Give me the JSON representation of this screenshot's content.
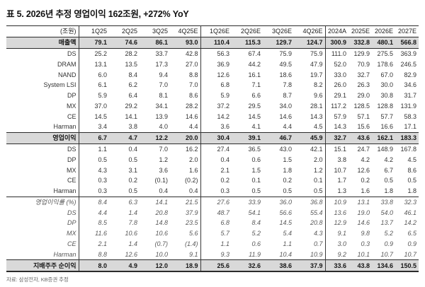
{
  "title": "표 5. 2026년 추정 영업이익 162조원, +272% YoY",
  "source": "자료: 삼성전자, KB증권 추정",
  "colors": {
    "band_bg": "#d9d9d9",
    "negative_text": "#e0443a",
    "body_text": "#333333",
    "italic_muted_text": "#595959",
    "border": "#2b2b2b"
  },
  "table": {
    "unit": "(조원)",
    "columns": [
      "1Q25",
      "2Q25",
      "3Q25",
      "4Q25E",
      "1Q26E",
      "2Q26E",
      "3Q26E",
      "4Q26E",
      "2024A",
      "2025E",
      "2026E",
      "2027E"
    ],
    "group_separator_after_columns": [
      "4Q25E",
      "4Q26E"
    ],
    "rows": [
      {
        "label": "매출액",
        "style": "band",
        "values": [
          "79.1",
          "74.6",
          "86.1",
          "93.0",
          "110.4",
          "115.3",
          "129.7",
          "124.7",
          "300.9",
          "332.8",
          "480.1",
          "566.8"
        ]
      },
      {
        "label": "DS",
        "style": "plain",
        "values": [
          "25.2",
          "28.2",
          "33.7",
          "42.8",
          "56.3",
          "67.4",
          "75.9",
          "75.9",
          "111.0",
          "129.9",
          "275.5",
          "363.9"
        ]
      },
      {
        "label": "DRAM",
        "style": "sub",
        "values": [
          "13.1",
          "13.5",
          "17.3",
          "27.0",
          "36.9",
          "44.2",
          "49.5",
          "47.9",
          "52.0",
          "70.9",
          "178.6",
          "246.5"
        ]
      },
      {
        "label": "NAND",
        "style": "sub",
        "values": [
          "6.0",
          "8.4",
          "9.4",
          "8.8",
          "12.6",
          "16.1",
          "18.6",
          "19.7",
          "33.0",
          "32.7",
          "67.0",
          "82.9"
        ]
      },
      {
        "label": "System LSI",
        "style": "sub",
        "values": [
          "6.1",
          "6.2",
          "7.0",
          "7.0",
          "6.8",
          "7.1",
          "7.8",
          "8.2",
          "26.0",
          "26.3",
          "30.0",
          "34.6"
        ]
      },
      {
        "label": "DP",
        "style": "plain",
        "values": [
          "5.9",
          "6.4",
          "8.1",
          "8.6",
          "5.9",
          "6.6",
          "8.7",
          "9.6",
          "29.1",
          "29.0",
          "30.8",
          "31.7"
        ]
      },
      {
        "label": "MX",
        "style": "plain",
        "values": [
          "37.0",
          "29.2",
          "34.1",
          "28.2",
          "37.2",
          "29.5",
          "34.0",
          "28.1",
          "117.2",
          "128.5",
          "128.8",
          "131.9"
        ]
      },
      {
        "label": "CE",
        "style": "plain",
        "values": [
          "14.5",
          "14.1",
          "13.9",
          "14.6",
          "14.2",
          "14.5",
          "14.6",
          "14.3",
          "57.9",
          "57.1",
          "57.7",
          "58.3"
        ]
      },
      {
        "label": "Harman",
        "style": "plain",
        "values": [
          "3.4",
          "3.8",
          "4.0",
          "4.4",
          "3.6",
          "4.1",
          "4.4",
          "4.5",
          "14.3",
          "15.6",
          "16.6",
          "17.1"
        ]
      },
      {
        "label": "영업이익",
        "style": "band",
        "values": [
          "6.7",
          "4.7",
          "12.2",
          "20.0",
          "30.4",
          "39.1",
          "46.7",
          "45.9",
          "32.7",
          "43.6",
          "162.1",
          "183.3"
        ]
      },
      {
        "label": "DS",
        "style": "plain",
        "values": [
          "1.1",
          "0.4",
          "7.0",
          "16.2",
          "27.4",
          "36.5",
          "43.0",
          "42.1",
          "15.1",
          "24.7",
          "148.9",
          "167.8"
        ]
      },
      {
        "label": "DP",
        "style": "plain",
        "values": [
          "0.5",
          "0.5",
          "1.2",
          "2.0",
          "0.4",
          "0.6",
          "1.5",
          "2.0",
          "3.8",
          "4.2",
          "4.2",
          "4.5"
        ]
      },
      {
        "label": "MX",
        "style": "plain",
        "values": [
          "4.3",
          "3.1",
          "3.6",
          "1.6",
          "2.1",
          "1.5",
          "1.8",
          "1.2",
          "10.7",
          "12.6",
          "6.7",
          "8.6"
        ]
      },
      {
        "label": "CE",
        "style": "plain",
        "values": [
          "0.3",
          "0.2",
          "(0.1)",
          "(0.2)",
          "0.2",
          "0.1",
          "0.2",
          "0.1",
          "1.7",
          "0.2",
          "0.5",
          "0.5"
        ]
      },
      {
        "label": "Harman",
        "style": "plain",
        "values": [
          "0.3",
          "0.5",
          "0.4",
          "0.4",
          "0.3",
          "0.5",
          "0.5",
          "0.5",
          "1.3",
          "1.6",
          "1.8",
          "1.8"
        ]
      },
      {
        "label": "영업이익률 (%)",
        "style": "section",
        "values": [
          "8.4",
          "6.3",
          "14.1",
          "21.5",
          "27.6",
          "33.9",
          "36.0",
          "36.8",
          "10.9",
          "13.1",
          "33.8",
          "32.3"
        ]
      },
      {
        "label": "DS",
        "style": "italic",
        "values": [
          "4.4",
          "1.4",
          "20.8",
          "37.9",
          "48.7",
          "54.1",
          "56.6",
          "55.4",
          "13.6",
          "19.0",
          "54.0",
          "46.1"
        ]
      },
      {
        "label": "DP",
        "style": "italic",
        "values": [
          "8.5",
          "7.8",
          "14.8",
          "23.5",
          "6.8",
          "8.4",
          "14.5",
          "20.8",
          "12.9",
          "14.6",
          "13.7",
          "14.2"
        ]
      },
      {
        "label": "MX",
        "style": "italic",
        "values": [
          "11.6",
          "10.6",
          "10.6",
          "5.6",
          "5.7",
          "5.2",
          "5.4",
          "4.3",
          "9.1",
          "9.8",
          "5.2",
          "6.5"
        ]
      },
      {
        "label": "CE",
        "style": "italic",
        "values": [
          "2.1",
          "1.4",
          "(0.7)",
          "(1.4)",
          "1.1",
          "0.6",
          "1.1",
          "0.7",
          "3.0",
          "0.3",
          "0.9",
          "0.9"
        ]
      },
      {
        "label": "Harman",
        "style": "italic",
        "values": [
          "8.8",
          "12.6",
          "10.0",
          "9.1",
          "9.3",
          "11.9",
          "10.4",
          "10.9",
          "9.2",
          "10.1",
          "10.7",
          "10.7"
        ]
      },
      {
        "label": "지배주주 순이익",
        "style": "band-end",
        "values": [
          "8.0",
          "4.9",
          "12.0",
          "18.9",
          "25.6",
          "32.6",
          "38.6",
          "37.9",
          "33.6",
          "43.8",
          "134.6",
          "150.5"
        ]
      }
    ]
  }
}
